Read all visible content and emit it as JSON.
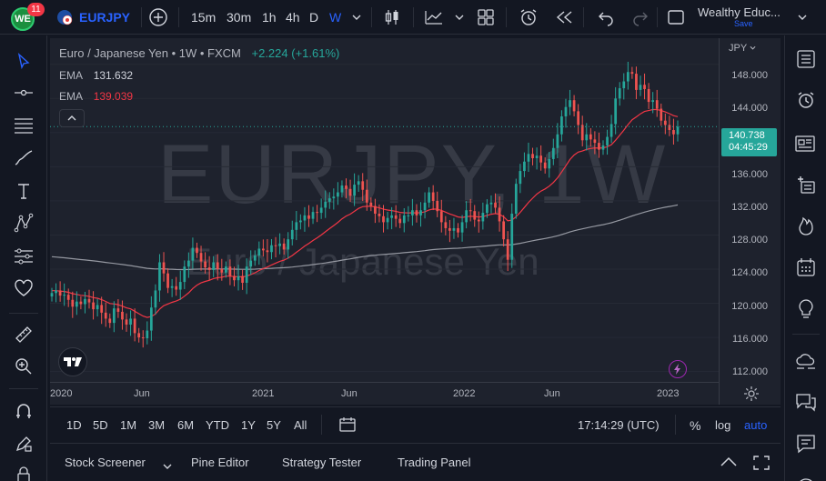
{
  "topbar": {
    "badge_count": "11",
    "logo_text": "WE",
    "symbol": "EURJPY",
    "intervals": [
      "15m",
      "30m",
      "1h",
      "4h",
      "D",
      "W"
    ],
    "active_interval": "W",
    "layout_name": "Wealthy Educ...",
    "save_label": "Save"
  },
  "legend": {
    "title": "Euro / Japanese Yen • 1W • FXCM",
    "change": "+2.224 (+1.61%)",
    "change_color": "#26a69a",
    "ema1_label": "EMA",
    "ema1_value": "131.632",
    "ema2_label": "EMA",
    "ema2_value": "139.039",
    "ema2_color": "#f23645"
  },
  "watermark": {
    "big": "EURJPY, 1W",
    "small": "Euro / Japanese Yen"
  },
  "price_axis": {
    "currency": "JPY",
    "labels": [
      "148.000",
      "144.000",
      "140.000",
      "136.000",
      "132.000",
      "128.000",
      "124.000",
      "120.000",
      "116.000",
      "112.000"
    ],
    "current_price": "140.738",
    "countdown": "04:45:29"
  },
  "time_axis": {
    "labels": [
      "2020",
      "Jun",
      "2021",
      "Jun",
      "2022",
      "Jun",
      "2023"
    ]
  },
  "bottombar": {
    "ranges": [
      "1D",
      "5D",
      "1M",
      "3M",
      "6M",
      "YTD",
      "1Y",
      "5Y",
      "All"
    ],
    "clock": "17:14:29 (UTC)",
    "percent_label": "%",
    "log_label": "log",
    "auto_label": "auto"
  },
  "bottompanel": {
    "tabs": [
      "Stock Screener",
      "Pine Editor",
      "Strategy Tester",
      "Trading Panel"
    ]
  },
  "chart_data": {
    "type": "candlestick",
    "symbol": "EURJPY",
    "interval": "1W",
    "ylim": [
      111,
      150
    ],
    "x_start": "2020-01",
    "x_end": "2023-01",
    "closes": [
      121.2,
      121.5,
      120.9,
      121.0,
      120.4,
      119.6,
      120.2,
      119.9,
      120.5,
      120.1,
      119.3,
      119.8,
      118.9,
      118.2,
      117.7,
      119.4,
      119.0,
      118.1,
      117.5,
      118.2,
      116.5,
      116.0,
      115.9,
      116.8,
      119.5,
      121.5,
      124.8,
      123.5,
      121.8,
      122.0,
      121.6,
      122.5,
      124.3,
      125.0,
      126.5,
      125.9,
      124.9,
      124.2,
      123.9,
      124.8,
      124.0,
      123.6,
      124.3,
      123.2,
      122.7,
      123.2,
      122.4,
      124.3,
      125.0,
      125.6,
      126.4,
      126.2,
      126.0,
      126.8,
      126.7,
      127.0,
      126.3,
      127.5,
      128.6,
      129.5,
      129.7,
      130.3,
      129.9,
      130.7,
      130.6,
      131.2,
      131.9,
      132.3,
      132.5,
      133.0,
      133.8,
      133.4,
      132.6,
      133.9,
      134.3,
      133.3,
      131.8,
      131.4,
      130.5,
      130.2,
      129.5,
      130.0,
      130.3,
      129.9,
      129.4,
      130.3,
      130.3,
      130.9,
      130.3,
      130.9,
      131.8,
      133.0,
      132.0,
      130.8,
      129.5,
      128.8,
      128.5,
      128.8,
      128.3,
      129.5,
      130.9,
      130.8,
      129.8,
      129.6,
      130.6,
      131.6,
      131.8,
      131.2,
      129.6,
      127.5,
      125.1,
      130.5,
      134.0,
      135.5,
      136.6,
      137.5,
      137.0,
      137.3,
      136.5,
      135.8,
      136.9,
      138.2,
      139.8,
      141.9,
      143.0,
      143.8,
      142.5,
      140.9,
      139.1,
      139.8,
      139.2,
      138.8,
      138.0,
      138.5,
      139.5,
      141.0,
      144.0,
      145.2,
      146.0,
      147.1,
      146.9,
      145.0,
      145.6,
      145.1,
      143.6,
      143.8,
      142.8,
      141.4,
      140.9,
      140.3,
      139.8,
      140.7
    ]
  }
}
